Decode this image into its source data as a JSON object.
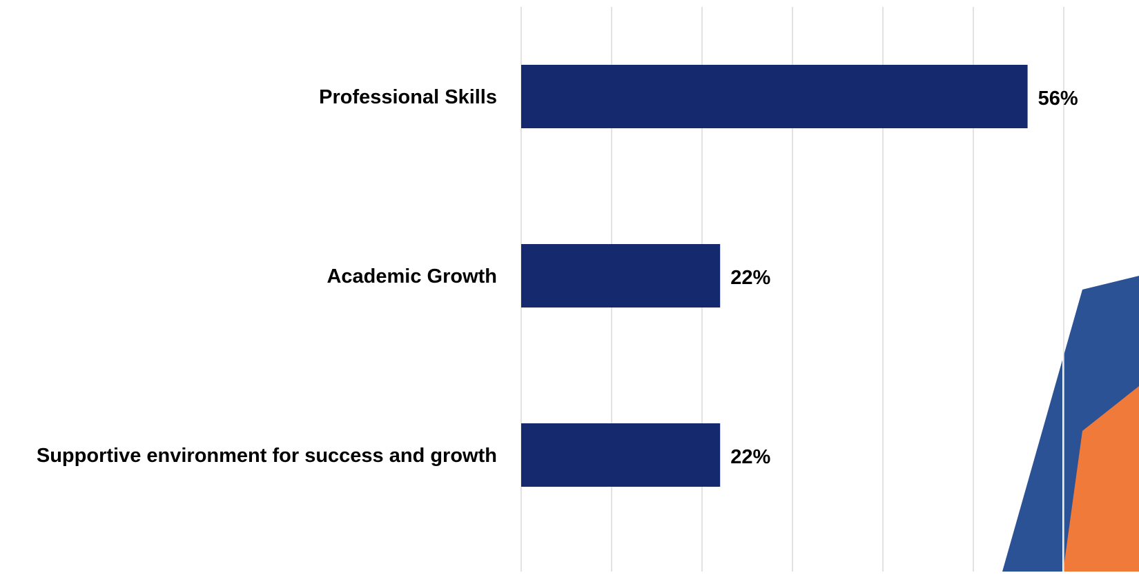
{
  "chart_data": {
    "type": "bar",
    "orientation": "horizontal",
    "categories": [
      "Professional Skills",
      "Academic Growth",
      "Supportive environment for success and growth"
    ],
    "values": [
      56,
      22,
      22
    ],
    "data_labels": [
      "56%",
      "22%",
      "22%"
    ],
    "xlim": [
      0,
      60
    ],
    "x_gridline_step": 10,
    "grid": true,
    "legend": "none",
    "title": "",
    "xlabel": "",
    "ylabel": ""
  },
  "colors": {
    "bar": "#152a6e",
    "gridline": "#d9d9d9",
    "label_text": "#000000",
    "decor_blue": "#2c5296",
    "decor_orange": "#f07a3a"
  },
  "decoration": {
    "icon": "corner-accent-shape"
  }
}
